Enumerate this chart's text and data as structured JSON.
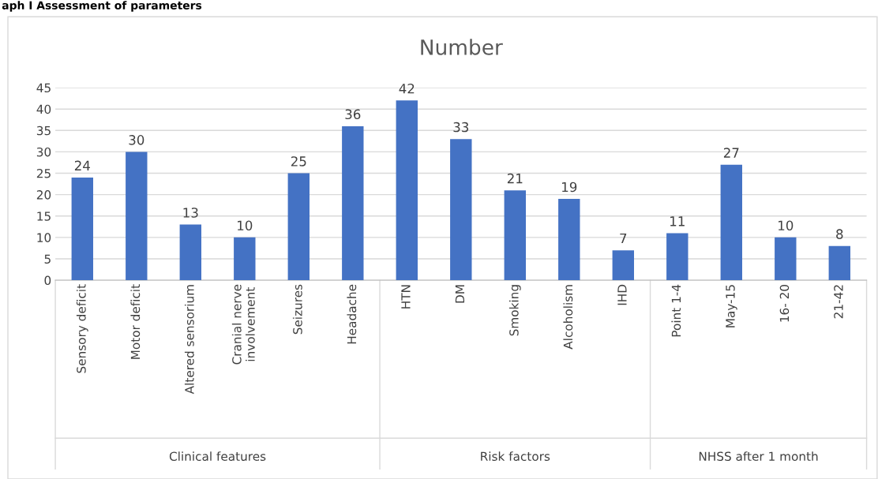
{
  "chart_data": {
    "type": "bar",
    "title": "Number",
    "categories": [
      "Sensory deficit",
      "Motor deficit",
      "Altered sensorium",
      "Cranial nerve\ninvolvement",
      "Seizures",
      "Headache",
      "HTN",
      "DM",
      "Smoking",
      "Alcoholism",
      "IHD",
      "Point 1-4",
      "May-15",
      "16- 20",
      "21-42"
    ],
    "values": [
      24,
      30,
      13,
      10,
      25,
      36,
      42,
      33,
      21,
      19,
      7,
      11,
      27,
      10,
      8
    ],
    "color": "#4472c4",
    "ylim": [
      0,
      45
    ],
    "yticks": [
      0,
      5,
      10,
      15,
      20,
      25,
      30,
      35,
      40,
      45
    ],
    "grid": "y",
    "data_labels": true,
    "legend": false,
    "annotations": [
      "aph I Assessment of parameters",
      "Clinical features",
      "Risk factors",
      "NHSS after 1 month"
    ]
  }
}
